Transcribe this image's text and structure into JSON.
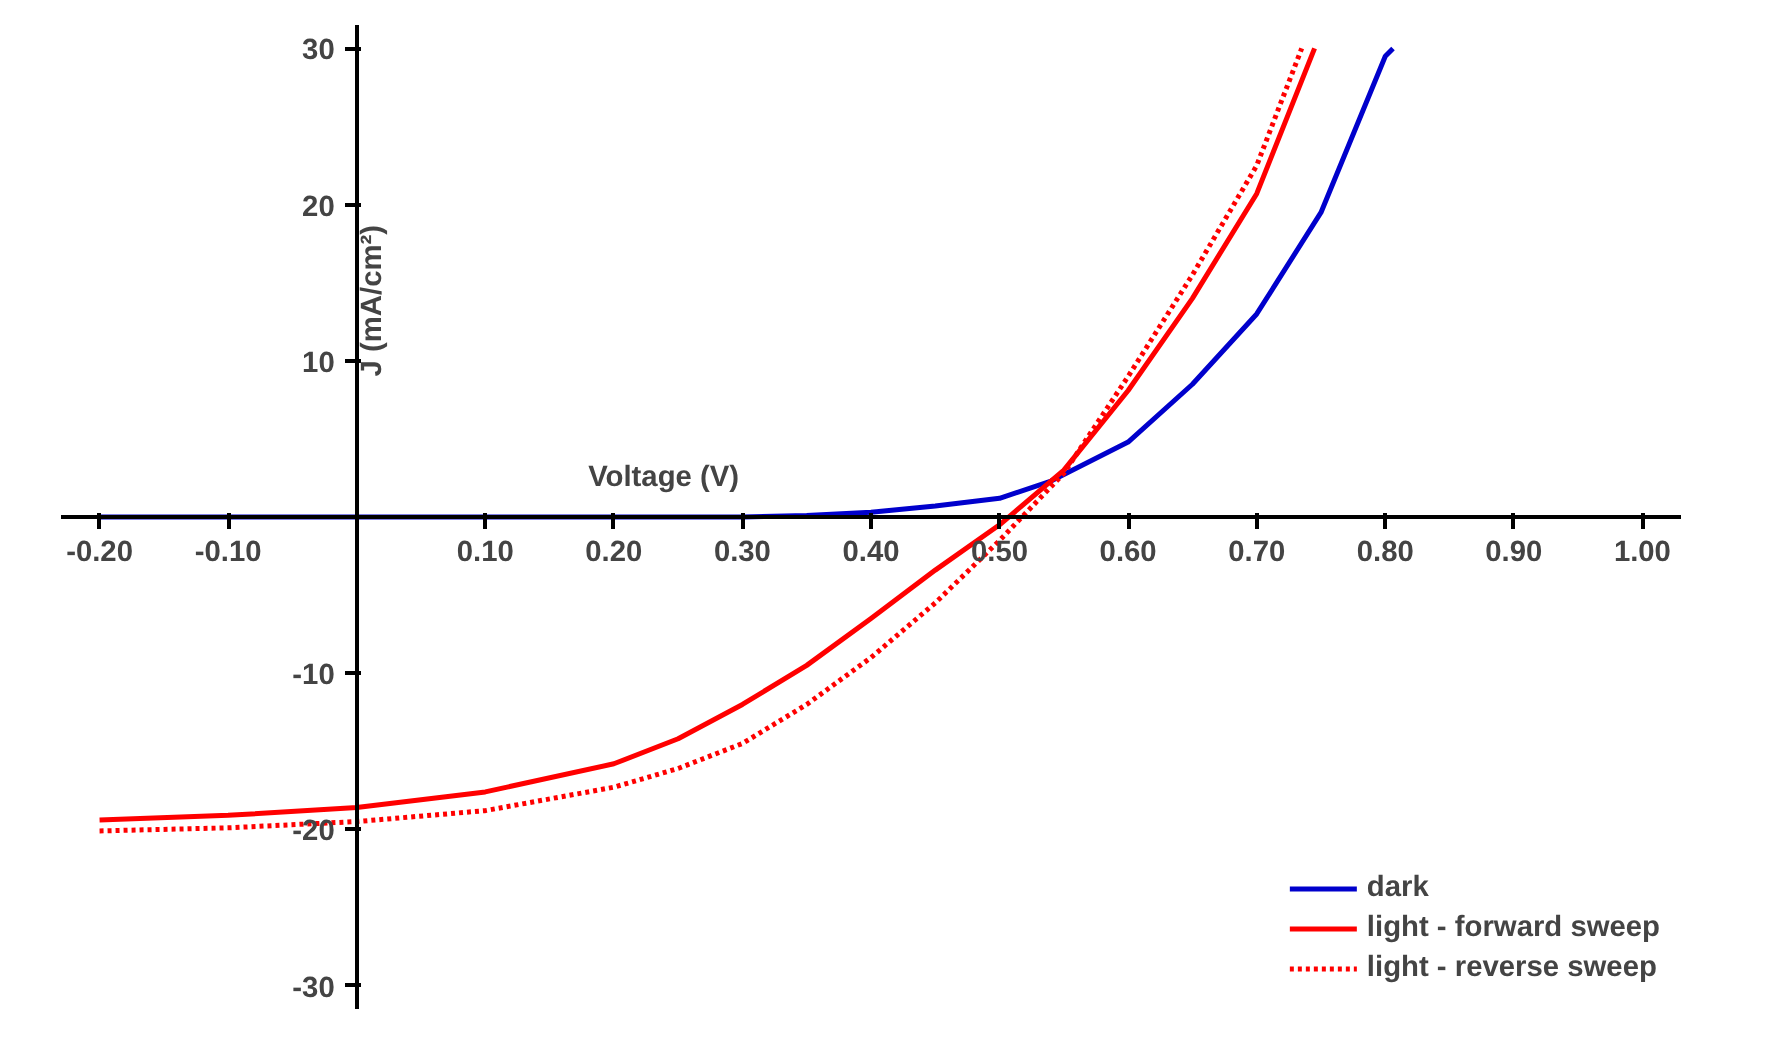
{
  "chart_data": {
    "type": "line",
    "xlabel": "Voltage (V)",
    "ylabel": "J (mA/cm²)",
    "xlim": [
      -0.23,
      1.03
    ],
    "ylim": [
      -31.5,
      31.5
    ],
    "xticks": [
      {
        "value": -0.2,
        "label": "-0.20"
      },
      {
        "value": -0.1,
        "label": "-0.10"
      },
      {
        "value": 0.1,
        "label": "0.10"
      },
      {
        "value": 0.2,
        "label": "0.20"
      },
      {
        "value": 0.3,
        "label": "0.30"
      },
      {
        "value": 0.4,
        "label": "0.40"
      },
      {
        "value": 0.5,
        "label": "0.50"
      },
      {
        "value": 0.6,
        "label": "0.60"
      },
      {
        "value": 0.7,
        "label": "0.70"
      },
      {
        "value": 0.8,
        "label": "0.80"
      },
      {
        "value": 0.9,
        "label": "0.90"
      },
      {
        "value": 1.0,
        "label": "1.00"
      }
    ],
    "yticks": [
      -30,
      -20,
      -10,
      {
        "value": 0,
        "label": null
      },
      10,
      20,
      30
    ],
    "grid": false,
    "legend": "bottom right",
    "marker": "none",
    "series": [
      {
        "name": "dark",
        "color": "#0000cc",
        "line_style": "solid",
        "x": [
          -0.2,
          -0.1,
          0,
          0.1,
          0.2,
          0.3,
          0.35,
          0.4,
          0.45,
          0.5,
          0.54,
          0.6,
          0.65,
          0.7,
          0.75,
          0.8,
          0.806
        ],
        "values": [
          0,
          0,
          0,
          0,
          0,
          0,
          0.1,
          0.3,
          0.7,
          1.2,
          2.3,
          4.8,
          8.5,
          13,
          19.5,
          29.5,
          30
        ]
      },
      {
        "name": "light - forward sweep",
        "color": "#ff0000",
        "line_style": "solid",
        "x": [
          -0.2,
          -0.1,
          0,
          0.1,
          0.2,
          0.25,
          0.3,
          0.35,
          0.4,
          0.45,
          0.5,
          0.55,
          0.6,
          0.65,
          0.7,
          0.745
        ],
        "values": [
          -19.4,
          -19.1,
          -18.6,
          -17.6,
          -15.8,
          -14.2,
          -12,
          -9.5,
          -6.5,
          -3.4,
          -0.5,
          3,
          8.1,
          14,
          20.7,
          30
        ]
      },
      {
        "name": "light - reverse sweep",
        "color": "#ff0000",
        "line_style": "dotted",
        "x": [
          -0.2,
          -0.1,
          0,
          0.1,
          0.2,
          0.25,
          0.3,
          0.35,
          0.4,
          0.45,
          0.5,
          0.55,
          0.6,
          0.65,
          0.7,
          0.735
        ],
        "values": [
          -20.1,
          -19.9,
          -19.5,
          -18.8,
          -17.3,
          -16.1,
          -14.5,
          -12,
          -9,
          -5.5,
          -1.5,
          2.8,
          9,
          15.5,
          22.5,
          30
        ]
      }
    ]
  }
}
